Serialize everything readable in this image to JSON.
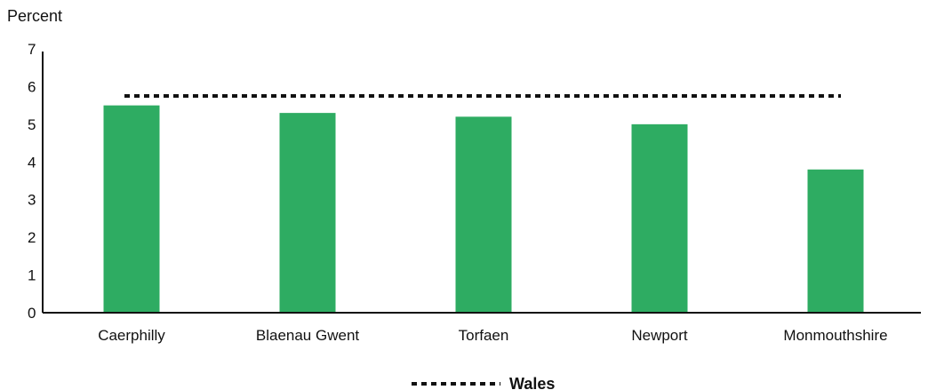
{
  "chart_data": {
    "type": "bar",
    "ylabel": "Percent",
    "ylim": [
      0,
      7
    ],
    "yticks": [
      0,
      1,
      2,
      3,
      4,
      5,
      6,
      7
    ],
    "categories": [
      "Caerphilly",
      "Blaenau Gwent",
      "Torfaen",
      "Newport",
      "Monmouthshire"
    ],
    "series": [
      {
        "values": [
          5.5,
          5.3,
          5.2,
          5.0,
          3.8
        ],
        "color": "#2eac62"
      }
    ],
    "reference_line": {
      "name": "Wales",
      "value": 5.75,
      "style": "dotted",
      "color": "#111111"
    },
    "legend": {
      "placement": "bottom-center",
      "entries": [
        "Wales"
      ]
    },
    "grid": false
  }
}
